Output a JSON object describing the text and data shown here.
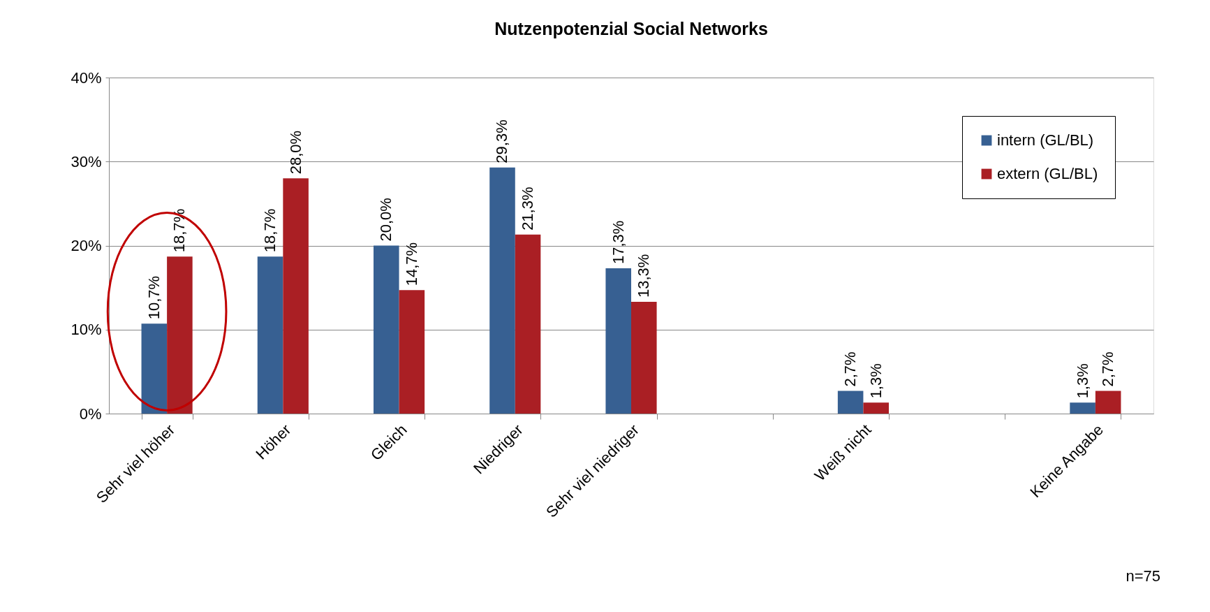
{
  "chart_data": {
    "type": "bar",
    "title": "Nutzenpotenzial Social Networks",
    "categories": [
      "Sehr viel höher",
      "Höher",
      "Gleich",
      "Niedriger",
      "Sehr viel niedriger",
      null,
      "Weiß nicht",
      null,
      "Keine Angabe"
    ],
    "series": [
      {
        "name": "intern (GL/BL)",
        "color": "#376092",
        "values": [
          10.7,
          18.7,
          20.0,
          29.3,
          17.3,
          null,
          2.7,
          null,
          1.3
        ],
        "value_labels": [
          "10,7%",
          "18,7%",
          "20,0%",
          "29,3%",
          "17,3%",
          null,
          "2,7%",
          null,
          "1,3%"
        ]
      },
      {
        "name": "extern (GL/BL)",
        "color": "#AA1F24",
        "values": [
          18.7,
          28.0,
          14.7,
          21.3,
          13.3,
          null,
          1.3,
          null,
          2.7
        ],
        "value_labels": [
          "18,7%",
          "28,0%",
          "14,7%",
          "21,3%",
          "13,3%",
          null,
          "1,3%",
          null,
          "2,7%"
        ]
      }
    ],
    "ylim": [
      0,
      40
    ],
    "yticks": [
      {
        "value": 0,
        "label": "0%"
      },
      {
        "value": 10,
        "label": "10%"
      },
      {
        "value": 20,
        "label": "20%"
      },
      {
        "value": 30,
        "label": "30%"
      },
      {
        "value": 40,
        "label": "40%"
      }
    ],
    "grid": "y",
    "legend": "top right",
    "annotations": [
      "n=75"
    ]
  }
}
